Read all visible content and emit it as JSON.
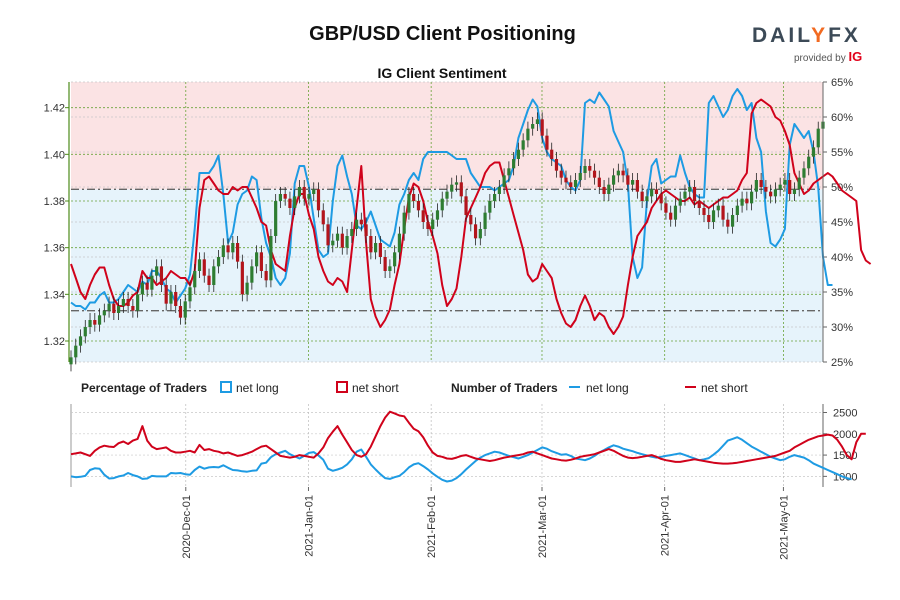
{
  "page": {
    "title": "GBP/USD Client Positioning",
    "brand_prefix": "DA",
    "brand_i": "I",
    "brand_l": "L",
    "brand_y": "Y",
    "brand_fx": "FX",
    "provided_by": "provided by",
    "provider": "IG"
  },
  "colors": {
    "net_long": "#1e9be3",
    "net_short": "#d0021b",
    "short_zone": "#fbe3e4",
    "long_zone": "#e6f3fb",
    "candle_up": "#2e7d32",
    "candle_down": "#b3141b",
    "axis_green": "#4d8b1a"
  },
  "chart_data": [
    {
      "type": "line",
      "title": "IG Client Sentiment",
      "price_axis": {
        "ticks": [
          1.32,
          1.34,
          1.36,
          1.38,
          1.4,
          1.42
        ],
        "ylim": [
          1.311,
          1.431
        ]
      },
      "pct_axis": {
        "ticks": [
          "25%",
          "30%",
          "35%",
          "40%",
          "45%",
          "50%",
          "55%",
          "60%",
          "65%"
        ],
        "ylim": [
          25,
          65
        ]
      },
      "reference_lines": [
        {
          "label": "50%",
          "value": 1.385
        },
        {
          "label": "33%",
          "value": 1.333
        }
      ],
      "x_range": [
        "2020-11-02",
        "2021-05-11"
      ],
      "x_ticks": [
        "2020-Dec-01",
        "2021-Jan-01",
        "2021-Feb-01",
        "2021-Mar-01",
        "2021-Apr-01",
        "2021-May-01"
      ],
      "series": [
        {
          "name": "GBP/USD",
          "kind": "candlestick",
          "close": [
            1.313,
            1.318,
            1.322,
            1.326,
            1.329,
            1.327,
            1.331,
            1.333,
            1.336,
            1.332,
            1.335,
            1.338,
            1.335,
            1.333,
            1.34,
            1.345,
            1.342,
            1.348,
            1.352,
            1.344,
            1.336,
            1.341,
            1.335,
            1.33,
            1.337,
            1.343,
            1.35,
            1.355,
            1.348,
            1.344,
            1.352,
            1.356,
            1.361,
            1.358,
            1.362,
            1.354,
            1.34,
            1.345,
            1.352,
            1.358,
            1.35,
            1.346,
            1.365,
            1.38,
            1.383,
            1.381,
            1.377,
            1.382,
            1.386,
            1.381,
            1.383,
            1.385,
            1.376,
            1.37,
            1.361,
            1.363,
            1.366,
            1.36,
            1.365,
            1.368,
            1.372,
            1.37,
            1.365,
            1.358,
            1.362,
            1.356,
            1.35,
            1.352,
            1.358,
            1.366,
            1.375,
            1.383,
            1.38,
            1.376,
            1.371,
            1.368,
            1.372,
            1.376,
            1.381,
            1.384,
            1.387,
            1.388,
            1.382,
            1.374,
            1.37,
            1.364,
            1.368,
            1.375,
            1.38,
            1.383,
            1.386,
            1.391,
            1.394,
            1.398,
            1.402,
            1.406,
            1.411,
            1.413,
            1.415,
            1.408,
            1.402,
            1.398,
            1.393,
            1.39,
            1.388,
            1.386,
            1.389,
            1.392,
            1.395,
            1.393,
            1.39,
            1.386,
            1.383,
            1.387,
            1.391,
            1.393,
            1.391,
            1.387,
            1.389,
            1.384,
            1.38,
            1.382,
            1.385,
            1.383,
            1.379,
            1.375,
            1.372,
            1.378,
            1.381,
            1.384,
            1.386,
            1.38,
            1.377,
            1.374,
            1.371,
            1.376,
            1.378,
            1.372,
            1.369,
            1.374,
            1.378,
            1.381,
            1.379,
            1.384,
            1.389,
            1.386,
            1.384,
            1.382,
            1.385,
            1.387,
            1.389,
            1.383,
            1.385,
            1.39,
            1.394,
            1.399,
            1.403,
            1.411,
            1.414
          ]
        },
        {
          "name": "net long",
          "kind": "pct_line",
          "values": [
            33.5,
            33.0,
            33.0,
            32.5,
            33.5,
            33.5,
            34.5,
            35.0,
            33.5,
            33.5,
            34.0,
            35.0,
            36.0,
            35.5,
            35.0,
            36.5,
            36.0,
            38.0,
            38.0,
            37.0,
            35.5,
            35.0,
            33.5,
            34.5,
            35.5,
            37.5,
            44.0,
            52.0,
            52.0,
            52.0,
            53.0,
            54.5,
            49.0,
            42.0,
            43.5,
            47.5,
            49.0,
            49.5,
            51.5,
            51.0,
            45.5,
            42.0,
            40.0,
            37.0,
            36.0,
            37.0,
            40.5,
            50.5,
            53.0,
            53.0,
            50.0,
            45.5,
            41.0,
            40.0,
            40.5,
            48.0,
            53.0,
            54.5,
            51.5,
            49.0,
            44.5,
            44.0,
            45.0,
            46.5,
            44.5,
            42.5,
            42.0,
            41.5,
            43.5,
            47.5,
            49.0,
            51.0,
            52.0,
            51.0,
            54.0,
            55.0,
            55.0,
            55.0,
            55.0,
            55.0,
            54.5,
            54.0,
            54.0,
            54.0,
            52.0,
            51.0,
            50.0,
            50.0,
            50.0,
            49.5,
            50.0,
            50.5,
            51.0,
            53.0,
            57.0,
            59.0,
            61.0,
            62.5,
            61.5,
            57.0,
            55.0,
            54.0,
            53.5,
            53.0,
            51.0,
            50.0,
            49.5,
            51.0,
            62.0,
            62.5,
            62.0,
            63.5,
            62.5,
            61.5,
            58.0,
            56.5,
            55.0,
            50.5,
            40.0,
            37.0,
            38.5,
            48.0,
            53.0,
            54.0,
            50.5,
            51.0,
            51.5,
            51.5,
            54.5,
            52.0,
            50.0,
            49.0,
            48.5,
            48.5,
            62.0,
            63.0,
            61.5,
            60.0,
            61.0,
            63.0,
            64.0,
            63.0,
            61.0,
            62.0,
            57.0,
            55.0,
            46.5,
            42.0,
            41.5,
            42.5,
            44.0,
            56.0,
            59.0,
            58.0,
            57.0,
            58.0,
            55.0,
            50.0,
            40.0,
            36.0,
            36.0
          ]
        },
        {
          "name": "net short",
          "kind": "pct_line",
          "values": [
            39.0,
            37.0,
            35.0,
            34.0,
            36.0,
            37.5,
            38.5,
            38.5,
            36.0,
            34.0,
            33.0,
            33.0,
            33.5,
            34.5,
            35.0,
            38.0,
            37.0,
            37.0,
            36.0,
            36.5,
            37.0,
            38.0,
            37.5,
            37.0,
            37.0,
            36.0,
            38.0,
            47.0,
            51.0,
            51.5,
            50.5,
            49.5,
            49.0,
            49.0,
            50.0,
            49.5,
            50.0,
            50.0,
            48.5,
            47.0,
            45.0,
            44.5,
            41.0,
            39.0,
            38.5,
            38.0,
            43.0,
            47.0,
            49.0,
            49.0,
            46.0,
            44.0,
            40.0,
            38.0,
            36.5,
            36.0,
            37.0,
            36.5,
            35.0,
            41.0,
            47.0,
            53.0,
            42.0,
            34.0,
            31.5,
            30.0,
            31.0,
            32.5,
            36.0,
            39.0,
            44.0,
            48.5,
            50.5,
            50.0,
            48.0,
            45.0,
            43.0,
            40.5,
            36.0,
            33.0,
            34.0,
            35.5,
            40.0,
            45.5,
            47.0,
            48.5,
            50.0,
            52.0,
            53.0,
            53.5,
            53.5,
            51.0,
            48.5,
            46.0,
            43.5,
            41.0,
            37.5,
            36.5,
            37.0,
            39.0,
            38.0,
            37.0,
            34.0,
            32.0,
            30.5,
            30.0,
            31.0,
            33.0,
            34.5,
            33.0,
            31.0,
            32.0,
            31.5,
            30.0,
            29.0,
            30.0,
            31.5,
            36.0,
            40.0,
            43.0,
            44.0,
            45.0,
            47.0,
            48.0,
            49.0,
            49.5,
            49.0,
            48.5,
            48.0,
            48.0,
            48.5,
            47.5,
            48.0,
            47.5,
            47.0,
            47.5,
            48.0,
            48.5,
            48.5,
            49.0,
            49.5,
            51.0,
            52.0,
            60.5,
            62.0,
            62.5,
            62.0,
            61.5,
            60.0,
            59.5,
            58.0,
            56.0,
            52.0,
            50.5,
            49.0,
            49.5,
            50.5,
            51.0,
            51.5,
            52.0,
            51.5,
            50.5,
            49.5,
            49.0,
            48.5,
            48.0,
            41.0,
            39.5,
            39.0
          ]
        }
      ]
    },
    {
      "type": "line",
      "title": "Number of Traders",
      "ylim": [
        750,
        2700
      ],
      "y_ticks": [
        1000,
        1500,
        2000,
        2500
      ],
      "series": [
        {
          "name": "net long",
          "values": [
            1000,
            980,
            990,
            1010,
            1150,
            1190,
            1180,
            1040,
            950,
            960,
            1000,
            1020,
            1080,
            1030,
            1000,
            940,
            950,
            1010,
            1000,
            1000,
            1000,
            1080,
            1070,
            1080,
            1050,
            1040,
            1150,
            1230,
            1180,
            1210,
            1220,
            1210,
            1260,
            1200,
            1150,
            1140,
            1120,
            1110,
            1130,
            1140,
            1300,
            1320,
            1450,
            1520,
            1560,
            1600,
            1520,
            1470,
            1420,
            1480,
            1550,
            1570,
            1490,
            1390,
            1180,
            1130,
            1160,
            1200,
            1280,
            1400,
            1580,
            1630,
            1460,
            1280,
            1160,
            1050,
            960,
            940,
            980,
            1010,
            1100,
            1210,
            1280,
            1310,
            1240,
            1160,
            1070,
            990,
            920,
            880,
            900,
            960,
            1050,
            1160,
            1260,
            1360,
            1440,
            1500,
            1540,
            1580,
            1560,
            1520,
            1480,
            1450,
            1420,
            1460,
            1500,
            1560,
            1620,
            1680,
            1650,
            1590,
            1550,
            1510,
            1520,
            1480,
            1420,
            1400,
            1380,
            1420,
            1480,
            1560,
            1620,
            1680,
            1730,
            1700,
            1650,
            1620,
            1590,
            1550,
            1520,
            1490,
            1460,
            1440,
            1460,
            1480,
            1500,
            1520,
            1540,
            1500,
            1460,
            1420,
            1380,
            1400,
            1430,
            1510,
            1600,
            1720,
            1840,
            1880,
            1920,
            1860,
            1780,
            1700,
            1640,
            1580,
            1520,
            1460,
            1420,
            1380,
            1400,
            1460,
            1500,
            1470,
            1440,
            1380,
            1300,
            1250,
            1200,
            1150,
            1100,
            1050,
            1000,
            960,
            930
          ]
        },
        {
          "name": "net short",
          "values": [
            1520,
            1540,
            1560,
            1520,
            1480,
            1600,
            1680,
            1720,
            1700,
            1690,
            1780,
            1820,
            1760,
            1840,
            1880,
            2180,
            1840,
            1700,
            1640,
            1660,
            1680,
            1600,
            1560,
            1560,
            1580,
            1600,
            1560,
            1740,
            1620,
            1640,
            1600,
            1580,
            1540,
            1560,
            1520,
            1480,
            1500,
            1540,
            1580,
            1640,
            1700,
            1720,
            1640,
            1560,
            1480,
            1460,
            1440,
            1460,
            1500,
            1480,
            1460,
            1440,
            1540,
            1680,
            1900,
            2050,
            2180,
            1980,
            1800,
            1620,
            1500,
            1460,
            1520,
            1700,
            1940,
            2180,
            2380,
            2520,
            2480,
            2430,
            2410,
            2260,
            2120,
            2060,
            1920,
            1720,
            1560,
            1480,
            1460,
            1420,
            1410,
            1440,
            1480,
            1500,
            1460,
            1420,
            1400,
            1380,
            1360,
            1380,
            1410,
            1440,
            1460,
            1480,
            1500,
            1520,
            1560,
            1580,
            1540,
            1500,
            1460,
            1420,
            1400,
            1380,
            1370,
            1390,
            1420,
            1460,
            1480,
            1500,
            1520,
            1560,
            1600,
            1640,
            1600,
            1540,
            1480,
            1440,
            1430,
            1440,
            1460,
            1480,
            1500,
            1460,
            1410,
            1380,
            1360,
            1340,
            1340,
            1360,
            1380,
            1400,
            1380,
            1360,
            1340,
            1320,
            1310,
            1300,
            1300,
            1310,
            1320,
            1340,
            1360,
            1380,
            1400,
            1420,
            1440,
            1460,
            1480,
            1520,
            1560,
            1600,
            1680,
            1740,
            1800,
            1860,
            1900,
            1940,
            1960,
            1980,
            1960,
            1860,
            1700,
            1500,
            1400,
            1800,
            2000,
            2000
          ]
        }
      ]
    }
  ],
  "legend": {
    "pct_title": "Percentage of Traders",
    "num_title": "Number of Traders",
    "net_long": "net long",
    "net_short": "net short"
  }
}
